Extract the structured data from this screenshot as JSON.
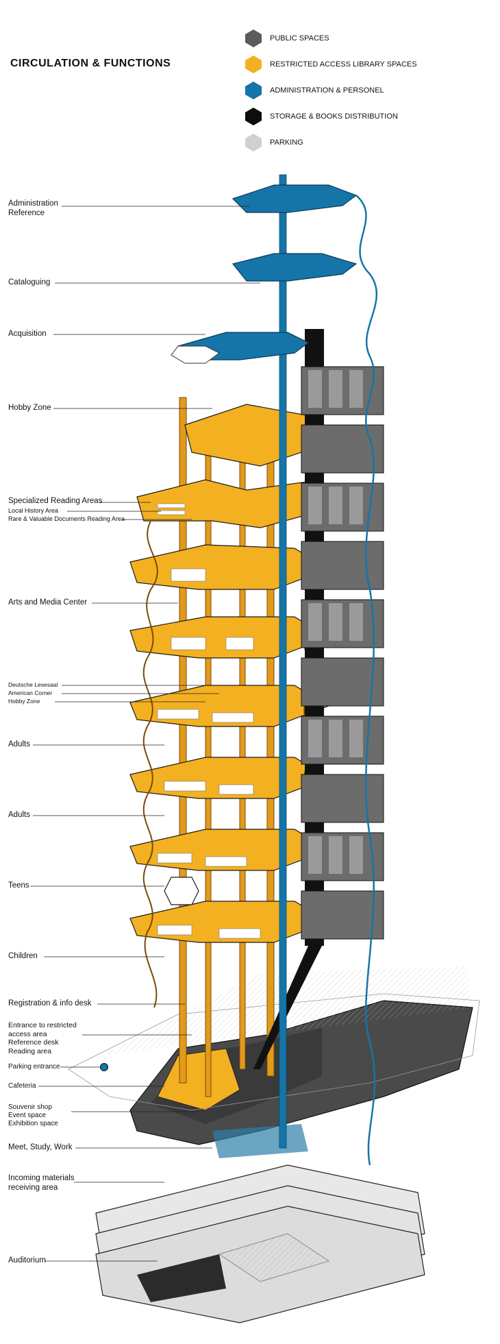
{
  "title": "CIRCULATION & FUNCTIONS",
  "legend": [
    {
      "label": "PUBLIC SPACES",
      "color": "#5b5b5b"
    },
    {
      "label": "RESTRICTED ACCESS LIBRARY SPACES",
      "color": "#f3b021"
    },
    {
      "label": "ADMINISTRATION & PERSONEL",
      "color": "#1575a8"
    },
    {
      "label": "STORAGE & BOOKS DISTRIBUTION",
      "color": "#0d0d0d"
    },
    {
      "label": "PARKING",
      "color": "#d0d0d0"
    }
  ],
  "functions": {
    "admin_1": "Administration",
    "admin_2": "Reference",
    "cataloguing": "Cataloguing",
    "acquisition": "Acquisition",
    "hobby_top": "Hobby Zone",
    "specialized": "Specialized Reading Areas",
    "local_history": "Local History Area",
    "rare_docs": "Rare & Valuable Documents Reading Area",
    "arts_media": "Arts and Media Center",
    "deutsche": "Deutsche Lesesaal",
    "american": "American Corner",
    "hobby_low": "Hobby Zone",
    "adults_1": "Adults",
    "adults_2": "Adults",
    "teens": "Teens",
    "children": "Children",
    "registration": "Registration & info desk",
    "entrance_1": "Entrance to restricted",
    "entrance_2": "access area",
    "entrance_3": "Reference desk",
    "entrance_4": "Reading area",
    "parking_entrance": "Parking entrance",
    "cafeteria": "Cafeteria",
    "souvenir": "Souvenir shop",
    "event": "Event space",
    "exhibition": "Exhibition space",
    "meet": "Meet, Study, Work",
    "incoming_1": "Incoming materials",
    "incoming_2": "receiving area",
    "auditorium": "Auditorium"
  }
}
